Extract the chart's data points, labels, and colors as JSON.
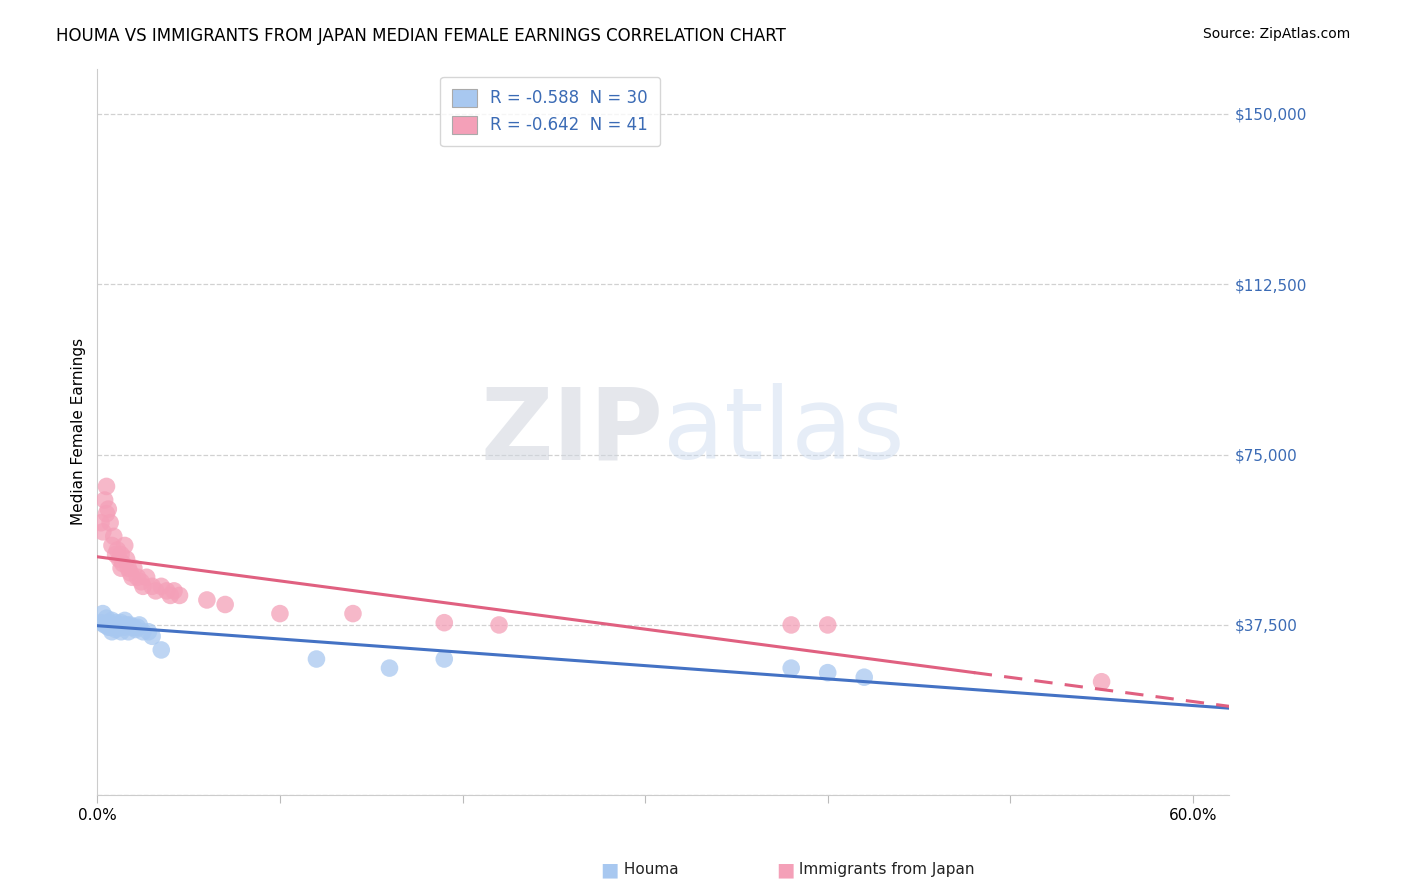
{
  "title": "HOUMA VS IMMIGRANTS FROM JAPAN MEDIAN FEMALE EARNINGS CORRELATION CHART",
  "source": "Source: ZipAtlas.com",
  "ylabel": "Median Female Earnings",
  "xlim": [
    0.0,
    0.62
  ],
  "ylim": [
    0,
    160000
  ],
  "ytick_vals": [
    0,
    37500,
    75000,
    112500,
    150000
  ],
  "ytick_labels": [
    "",
    "$37,500",
    "$75,000",
    "$112,500",
    "$150,000"
  ],
  "xtick_vals": [
    0.0,
    0.1,
    0.2,
    0.3,
    0.4,
    0.5,
    0.6
  ],
  "xtick_labels": [
    "0.0%",
    "",
    "",
    "",
    "",
    "",
    "60.0%"
  ],
  "legend_label1": "Houma",
  "legend_label2": "Immigrants from Japan",
  "color_blue": "#A8C8F0",
  "color_pink": "#F4A0B8",
  "line_color_blue": "#4472C4",
  "line_color_pink": "#E06080",
  "background_color": "#FFFFFF",
  "houma_x": [
    0.002,
    0.003,
    0.004,
    0.005,
    0.005,
    0.006,
    0.006,
    0.007,
    0.008,
    0.008,
    0.009,
    0.01,
    0.01,
    0.011,
    0.012,
    0.013,
    0.013,
    0.014,
    0.015,
    0.015,
    0.016,
    0.017,
    0.018,
    0.019,
    0.02,
    0.021,
    0.022,
    0.023,
    0.025,
    0.028,
    0.19,
    0.38,
    0.4,
    0.42,
    0.005,
    0.007,
    0.009,
    0.03,
    0.035,
    0.12,
    0.16
  ],
  "houma_y": [
    38000,
    40000,
    37500,
    37500,
    39000,
    38000,
    37000,
    37500,
    36000,
    38500,
    37000,
    38000,
    36500,
    37500,
    37000,
    38000,
    36000,
    37500,
    37000,
    38500,
    37500,
    36000,
    37500,
    37000,
    37000,
    36500,
    37000,
    37500,
    36000,
    36000,
    30000,
    28000,
    27000,
    26000,
    37500,
    37000,
    37500,
    35000,
    32000,
    30000,
    28000
  ],
  "japan_x": [
    0.002,
    0.003,
    0.004,
    0.005,
    0.005,
    0.006,
    0.007,
    0.008,
    0.009,
    0.01,
    0.011,
    0.012,
    0.013,
    0.013,
    0.014,
    0.015,
    0.016,
    0.017,
    0.018,
    0.019,
    0.02,
    0.022,
    0.024,
    0.025,
    0.027,
    0.03,
    0.032,
    0.035,
    0.038,
    0.04,
    0.042,
    0.045,
    0.06,
    0.07,
    0.1,
    0.14,
    0.19,
    0.22,
    0.38,
    0.4,
    0.55
  ],
  "japan_y": [
    60000,
    58000,
    65000,
    62000,
    68000,
    63000,
    60000,
    55000,
    57000,
    53000,
    54000,
    52000,
    53000,
    50000,
    51000,
    55000,
    52000,
    50000,
    49000,
    48000,
    50000,
    48000,
    47000,
    46000,
    48000,
    46000,
    45000,
    46000,
    45000,
    44000,
    45000,
    44000,
    43000,
    42000,
    40000,
    40000,
    38000,
    37500,
    37500,
    37500,
    25000
  ],
  "watermark_text": "ZIPatlas",
  "title_fontsize": 12,
  "source_fontsize": 10,
  "ylabel_fontsize": 11,
  "tick_fontsize": 11,
  "legend_fontsize": 12
}
